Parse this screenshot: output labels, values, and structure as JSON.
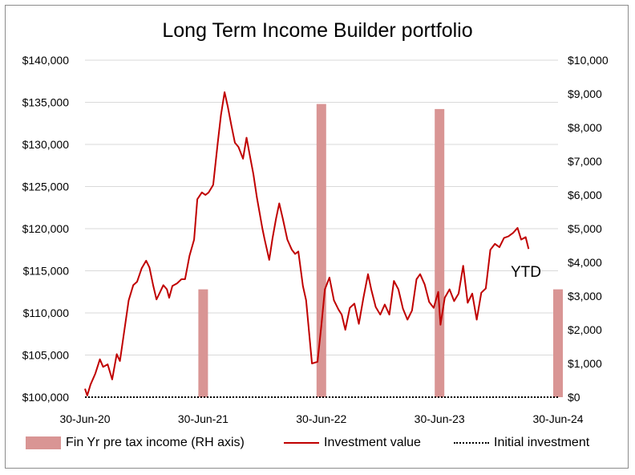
{
  "chart_data": {
    "type": "bar+line",
    "title": "Long Term Income Builder portfolio",
    "x_tick_labels": [
      "30-Jun-20",
      "30-Jun-21",
      "30-Jun-22",
      "30-Jun-23",
      "30-Jun-24"
    ],
    "x_range": [
      "2020-06-30",
      "2024-06-30"
    ],
    "y_left": {
      "range": [
        100000,
        140000
      ],
      "ticks": [
        100000,
        105000,
        110000,
        115000,
        120000,
        125000,
        130000,
        135000,
        140000
      ],
      "tick_labels": [
        "$100,000",
        "$105,000",
        "$110,000",
        "$115,000",
        "$120,000",
        "$125,000",
        "$130,000",
        "$135,000",
        "$140,000"
      ]
    },
    "y_right": {
      "range": [
        0,
        10000
      ],
      "ticks": [
        0,
        1000,
        2000,
        3000,
        4000,
        5000,
        6000,
        7000,
        8000,
        9000,
        10000
      ],
      "tick_labels": [
        "$0",
        "$1,000",
        "$2,000",
        "$3,000",
        "$4,000",
        "$5,000",
        "$6,000",
        "$7,000",
        "$8,000",
        "$9,000",
        "$10,000"
      ]
    },
    "annotation": "YTD",
    "series": [
      {
        "name": "Fin Yr pre tax income (RH axis)",
        "kind": "bar",
        "axis": "right",
        "color": "#d99594",
        "points": [
          {
            "x": "2021-06-30",
            "y": 3200
          },
          {
            "x": "2022-06-30",
            "y": 8700
          },
          {
            "x": "2023-06-30",
            "y": 8550
          },
          {
            "x": "2024-06-30",
            "y": 3200
          }
        ]
      },
      {
        "name": "Investment value",
        "kind": "line",
        "axis": "left",
        "color": "#c00000",
        "points": [
          [
            "2020-06-30",
            101000
          ],
          [
            "2020-07-07",
            100200
          ],
          [
            "2020-07-17",
            101500
          ],
          [
            "2020-08-01",
            102800
          ],
          [
            "2020-08-15",
            104500
          ],
          [
            "2020-08-25",
            103600
          ],
          [
            "2020-09-08",
            103900
          ],
          [
            "2020-09-22",
            102100
          ],
          [
            "2020-10-06",
            105100
          ],
          [
            "2020-10-16",
            104300
          ],
          [
            "2020-10-29",
            107800
          ],
          [
            "2020-11-12",
            111500
          ],
          [
            "2020-11-26",
            113300
          ],
          [
            "2020-12-08",
            113700
          ],
          [
            "2020-12-22",
            115300
          ],
          [
            "2021-01-05",
            116200
          ],
          [
            "2021-01-15",
            115400
          ],
          [
            "2021-01-27",
            113200
          ],
          [
            "2021-02-06",
            111600
          ],
          [
            "2021-02-16",
            112400
          ],
          [
            "2021-02-27",
            113300
          ],
          [
            "2021-03-10",
            112800
          ],
          [
            "2021-03-17",
            111800
          ],
          [
            "2021-03-27",
            113200
          ],
          [
            "2021-04-10",
            113500
          ],
          [
            "2021-04-24",
            114000
          ],
          [
            "2021-05-05",
            114000
          ],
          [
            "2021-05-19",
            116800
          ],
          [
            "2021-06-02",
            118700
          ],
          [
            "2021-06-12",
            123500
          ],
          [
            "2021-06-26",
            124300
          ],
          [
            "2021-07-07",
            124000
          ],
          [
            "2021-07-17",
            124300
          ],
          [
            "2021-07-31",
            125200
          ],
          [
            "2021-08-14",
            130200
          ],
          [
            "2021-08-24",
            133500
          ],
          [
            "2021-09-04",
            136200
          ],
          [
            "2021-09-14",
            134500
          ],
          [
            "2021-09-25",
            132300
          ],
          [
            "2021-10-06",
            130200
          ],
          [
            "2021-10-17",
            129700
          ],
          [
            "2021-10-31",
            128300
          ],
          [
            "2021-11-11",
            130800
          ],
          [
            "2021-11-22",
            128500
          ],
          [
            "2021-12-02",
            126500
          ],
          [
            "2021-12-13",
            123700
          ],
          [
            "2021-12-30",
            120000
          ],
          [
            "2022-01-06",
            118700
          ],
          [
            "2022-01-20",
            116300
          ],
          [
            "2022-01-30",
            118800
          ],
          [
            "2022-02-10",
            121200
          ],
          [
            "2022-02-20",
            123000
          ],
          [
            "2022-03-03",
            121200
          ],
          [
            "2022-03-17",
            118700
          ],
          [
            "2022-03-31",
            117500
          ],
          [
            "2022-04-10",
            117000
          ],
          [
            "2022-04-20",
            117300
          ],
          [
            "2022-05-04",
            113200
          ],
          [
            "2022-05-14",
            111500
          ],
          [
            "2022-06-01",
            104000
          ],
          [
            "2022-06-18",
            104200
          ],
          [
            "2022-06-30",
            108500
          ],
          [
            "2022-07-11",
            112800
          ],
          [
            "2022-07-25",
            114200
          ],
          [
            "2022-08-08",
            111500
          ],
          [
            "2022-08-22",
            110400
          ],
          [
            "2022-09-01",
            109800
          ],
          [
            "2022-09-12",
            108000
          ],
          [
            "2022-09-26",
            110600
          ],
          [
            "2022-10-10",
            111100
          ],
          [
            "2022-10-24",
            108700
          ],
          [
            "2022-11-07",
            111800
          ],
          [
            "2022-11-21",
            114600
          ],
          [
            "2022-12-01",
            112800
          ],
          [
            "2022-12-15",
            110700
          ],
          [
            "2022-12-29",
            109800
          ],
          [
            "2023-01-12",
            111000
          ],
          [
            "2023-01-26",
            109800
          ],
          [
            "2023-02-09",
            113800
          ],
          [
            "2023-02-23",
            112800
          ],
          [
            "2023-03-09",
            110500
          ],
          [
            "2023-03-23",
            109200
          ],
          [
            "2023-04-06",
            110300
          ],
          [
            "2023-04-20",
            114000
          ],
          [
            "2023-05-01",
            114600
          ],
          [
            "2023-05-15",
            113400
          ],
          [
            "2023-05-29",
            111300
          ],
          [
            "2023-06-12",
            110600
          ],
          [
            "2023-06-26",
            112500
          ],
          [
            "2023-07-03",
            108600
          ],
          [
            "2023-07-16",
            111800
          ],
          [
            "2023-07-31",
            112800
          ],
          [
            "2023-08-14",
            111400
          ],
          [
            "2023-08-28",
            112300
          ],
          [
            "2023-09-11",
            115600
          ],
          [
            "2023-09-25",
            111200
          ],
          [
            "2023-10-09",
            112300
          ],
          [
            "2023-10-23",
            109200
          ],
          [
            "2023-11-06",
            112400
          ],
          [
            "2023-11-20",
            112900
          ],
          [
            "2023-12-04",
            117500
          ],
          [
            "2023-12-18",
            118200
          ],
          [
            "2024-01-01",
            117800
          ],
          [
            "2024-01-15",
            118900
          ],
          [
            "2024-01-29",
            119100
          ],
          [
            "2024-02-12",
            119500
          ],
          [
            "2024-02-26",
            120100
          ],
          [
            "2024-03-08",
            118700
          ],
          [
            "2024-03-22",
            119000
          ],
          [
            "2024-03-31",
            117600
          ]
        ]
      },
      {
        "name": "Initial investment",
        "kind": "line",
        "style": "dotted",
        "axis": "left",
        "color": "#000000",
        "points": [
          [
            "2020-06-30",
            100000
          ],
          [
            "2024-06-30",
            100000
          ]
        ]
      }
    ],
    "legend_position": "bottom"
  }
}
